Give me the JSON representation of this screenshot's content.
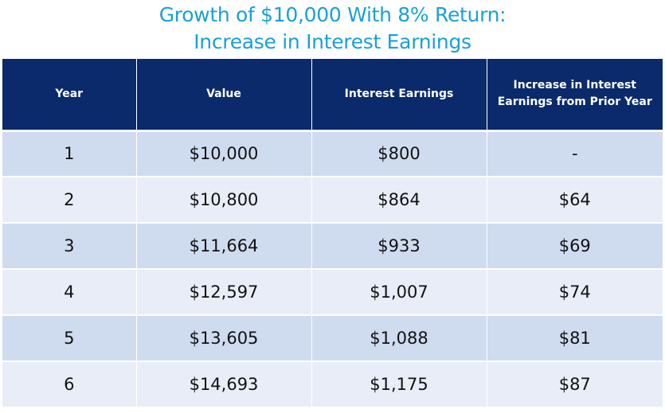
{
  "chart_data": {
    "type": "table",
    "title_line1": "Growth of $10,000 With 8% Return:",
    "title_line2": "Increase in Interest Earnings",
    "columns": [
      "Year",
      "Value",
      "Interest Earnings",
      "Increase in Interest Earnings from Prior Year"
    ],
    "rows": [
      [
        "1",
        "$10,000",
        "$800",
        "-"
      ],
      [
        "2",
        "$10,800",
        "$864",
        "$64"
      ],
      [
        "3",
        "$11,664",
        "$933",
        "$69"
      ],
      [
        "4",
        "$12,597",
        "$1,007",
        "$74"
      ],
      [
        "5",
        "$13,605",
        "$1,088",
        "$81"
      ],
      [
        "6",
        "$14,693",
        "$1,175",
        "$87"
      ]
    ]
  },
  "colors": {
    "title": "#1aa0d8",
    "header_background": "#0a2a6b",
    "row_dark": "#cfdbef",
    "row_light": "#e8edf7"
  }
}
